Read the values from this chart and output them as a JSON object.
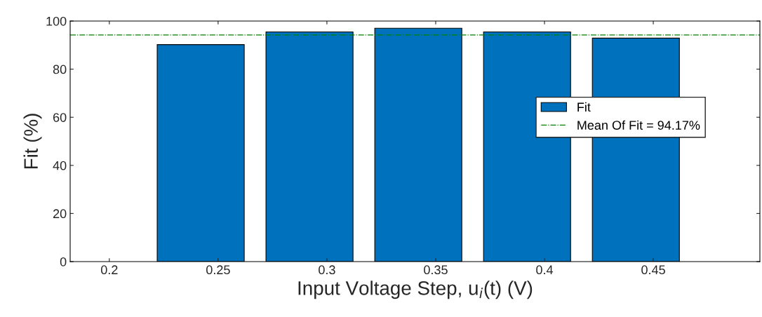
{
  "chart_data": {
    "type": "bar",
    "xlabel": "Input Voltage Step, u$_{i}$(t) (V)",
    "ylabel": "Fit (%)",
    "x": [
      0.242,
      0.292,
      0.342,
      0.392,
      0.442
    ],
    "series": [
      {
        "name": "Fit",
        "color": "#0072bd",
        "values": [
          90.2,
          95.5,
          97.0,
          95.5,
          92.9
        ]
      }
    ],
    "xlim": [
      0.182,
      0.499
    ],
    "xticks": [
      0.2,
      0.25,
      0.3,
      0.35,
      0.4,
      0.45
    ],
    "ylim": [
      0,
      100
    ],
    "yticks": [
      0,
      20,
      40,
      60,
      80,
      100
    ],
    "ref_lines": [
      {
        "axis": "y",
        "value": 94.17,
        "label": "Mean Of Fit = 94.17%",
        "color": "#008000",
        "line_style": "dashdot"
      }
    ],
    "grid": false,
    "legend": "right"
  }
}
